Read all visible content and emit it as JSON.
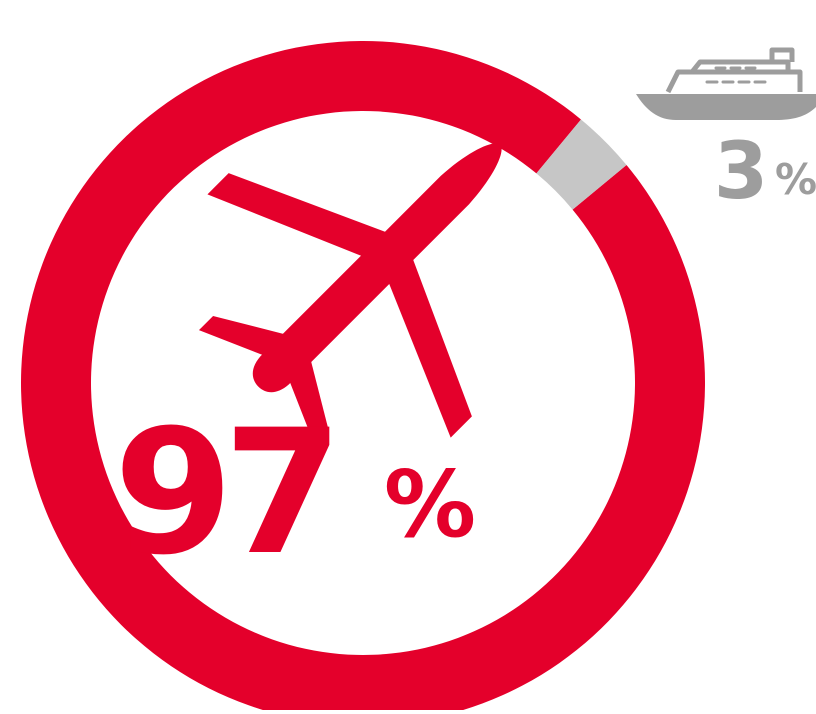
{
  "chart_data": {
    "type": "pie",
    "categories": [
      "Air",
      "Sea"
    ],
    "values": [
      97,
      3
    ],
    "labels": {
      "air": {
        "number": "97",
        "unit": "%"
      },
      "sea": {
        "number": "3",
        "unit": "%"
      }
    },
    "icons": {
      "air": "airplane-icon",
      "sea": "ship-icon"
    },
    "colors": {
      "air": "#e4002b",
      "sea": "#c6c6c6",
      "sea_text": "#9d9d9d"
    }
  }
}
